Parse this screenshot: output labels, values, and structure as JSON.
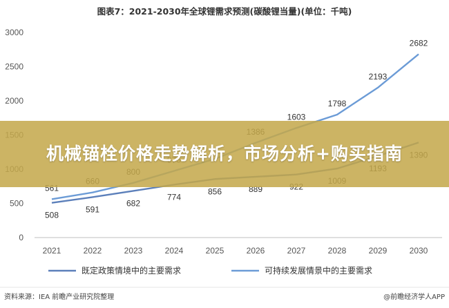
{
  "chart_data": {
    "type": "line",
    "title": "图表7：2021-2030年全球锂需求预测(碳酸锂当量)(单位：千吨)",
    "x": [
      "2021",
      "2022",
      "2023",
      "2024",
      "2025",
      "2026",
      "2027",
      "2028",
      "2029",
      "2030"
    ],
    "yticks": [
      "0",
      "500",
      "1000",
      "1500",
      "2000",
      "2500",
      "3000"
    ],
    "ylim": [
      0,
      3000
    ],
    "grid": false,
    "legend_position": "bottom",
    "series": [
      {
        "name": "既定政策情境中的主要需求",
        "values": [
          508,
          591,
          682,
          774,
          856,
          889,
          922,
          1009,
          1193,
          1390
        ],
        "labels": [
          "508",
          "591",
          "682",
          "774",
          "856",
          "889",
          "922",
          "1009",
          "1193",
          "1390"
        ],
        "label_side": "below",
        "color": "#5b7fba"
      },
      {
        "name": "可持续发展情景中的主要需求",
        "values": [
          561,
          660,
          800,
          975,
          1150,
          1386,
          1603,
          1798,
          2193,
          2682
        ],
        "labels": [
          "561",
          "660",
          "800",
          "975",
          "",
          "1386",
          "1603",
          "1798",
          "2193",
          "2682"
        ],
        "label_side": "above",
        "color": "#6b9bd6"
      }
    ]
  },
  "source_text": "资料来源：IEA 前瞻产业研究院整理",
  "watermark_text": "@前瞻经济学人APP",
  "banner": {
    "text": "机械锚栓价格走势解析，市场分析+购买指南",
    "color": "#c4a84a"
  }
}
